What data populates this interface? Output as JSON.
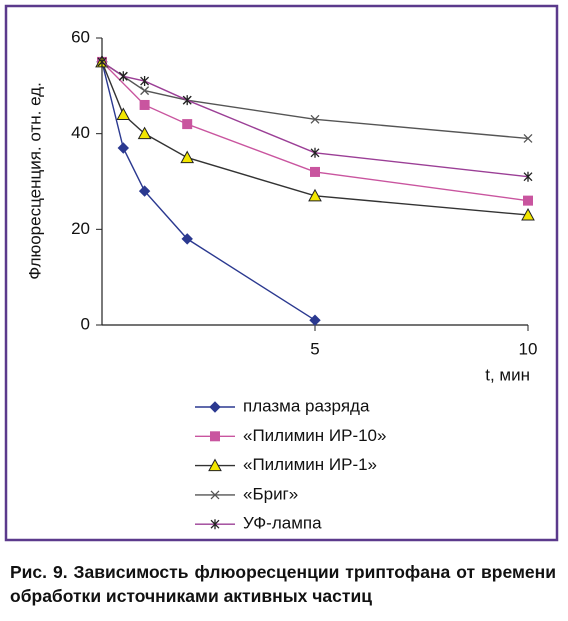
{
  "chart_data": {
    "type": "line",
    "y_label": "Флюоресценция. отн. ед.",
    "x_label": "t, мин",
    "xlim": [
      0,
      10
    ],
    "xticks": [
      5,
      10
    ],
    "ylim": [
      0,
      60
    ],
    "yticks": [
      0,
      20,
      40,
      60
    ],
    "series": [
      {
        "name": "плазма разряда",
        "color": "#2b3990",
        "marker": "diamond",
        "x": [
          0,
          0.5,
          1,
          2,
          5
        ],
        "values": [
          55,
          37,
          28,
          18,
          1
        ]
      },
      {
        "name": "«Пилимин ИР-10»",
        "color": "#c9559f",
        "marker": "square",
        "x": [
          0,
          1,
          2,
          5,
          10
        ],
        "values": [
          55,
          46,
          42,
          32,
          26
        ]
      },
      {
        "name": "«Пилимин ИР-1»",
        "color": "#f2e600",
        "marker": "triangle",
        "x": [
          0,
          0.5,
          1,
          2,
          5,
          10
        ],
        "values": [
          55,
          44,
          40,
          35,
          27,
          23
        ]
      },
      {
        "name": "«Бриг»",
        "color": "#555555",
        "marker": "x",
        "x": [
          0,
          0.5,
          1,
          2,
          5,
          10
        ],
        "values": [
          55,
          52,
          49,
          47,
          43,
          39
        ]
      },
      {
        "name": "УФ-лампа",
        "color": "#9b3f96",
        "marker": "asterisk",
        "x": [
          0,
          0.5,
          1,
          2,
          5,
          10
        ],
        "values": [
          55,
          52,
          51,
          47,
          36,
          31
        ]
      }
    ]
  },
  "caption": "Рис. 9. Зависимость флюоресценции триптофана от времени обработки источниками активных частиц"
}
